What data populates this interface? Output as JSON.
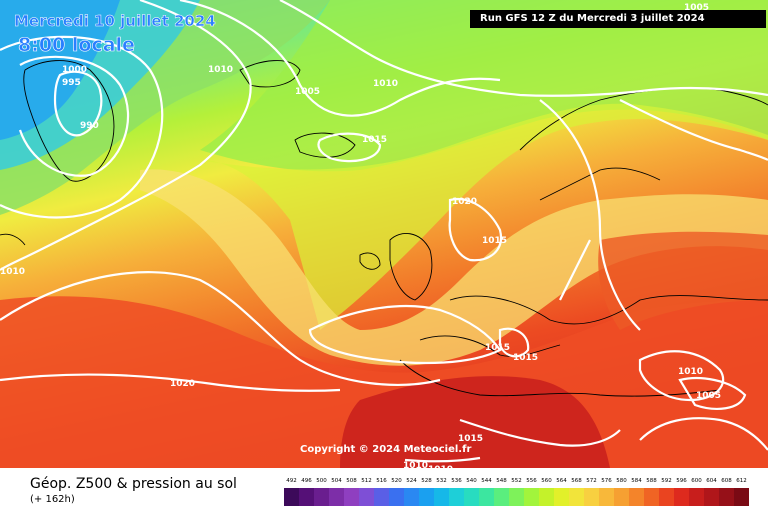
{
  "header": {
    "date": "Mercredi 10 juillet 2024",
    "time": "8:00 locale",
    "run": "Run GFS 12 Z du Mercredi 3 juillet 2024"
  },
  "footer": {
    "title": "Géop. Z500 & pression au sol",
    "forecast_hour": "(+ 162h)",
    "copyright": "Copyright © 2024 Meteociel.fr"
  },
  "legend": {
    "labels": [
      "492",
      "496",
      "500",
      "504",
      "508",
      "512",
      "516",
      "520",
      "524",
      "528",
      "532",
      "536",
      "540",
      "544",
      "548",
      "552",
      "556",
      "560",
      "564",
      "568",
      "572",
      "576",
      "580",
      "584",
      "588",
      "592",
      "596",
      "600",
      "604",
      "608",
      "612"
    ],
    "colors": [
      "#3c0a5a",
      "#551077",
      "#6a1e8f",
      "#7d2ea8",
      "#8f3fc0",
      "#7e4fd6",
      "#5a5fe6",
      "#3a70f0",
      "#2a88f2",
      "#1aa0f0",
      "#16b8e8",
      "#1ecfd8",
      "#28dcc0",
      "#3ce6a0",
      "#5aee7e",
      "#7ef25a",
      "#a2f43c",
      "#c4f22a",
      "#e2f02a",
      "#f2e43a",
      "#f8d040",
      "#f8b83a",
      "#f6a032",
      "#f4842a",
      "#f06424",
      "#ea4420",
      "#de2a1e",
      "#c81e1c",
      "#b0161a",
      "#961018",
      "#7a0a14"
    ]
  },
  "pressure_labels": [
    {
      "text": "1000"
    },
    {
      "text": "995"
    },
    {
      "text": "990"
    },
    {
      "text": "1010"
    },
    {
      "text": "1005"
    },
    {
      "text": "1010"
    },
    {
      "text": "1015"
    },
    {
      "text": "1020"
    },
    {
      "text": "1015"
    },
    {
      "text": "1010"
    },
    {
      "text": "1015"
    },
    {
      "text": "1015"
    },
    {
      "text": "1020"
    },
    {
      "text": "1015"
    },
    {
      "text": "1010"
    },
    {
      "text": "1010"
    },
    {
      "text": "1010"
    },
    {
      "text": "1005"
    },
    {
      "text": "1005"
    }
  ],
  "colors": {
    "z500_low": "#2a9cf2",
    "z500_high": "#c81e1c",
    "isobar": "#ffffff",
    "coastline": "#000000"
  }
}
